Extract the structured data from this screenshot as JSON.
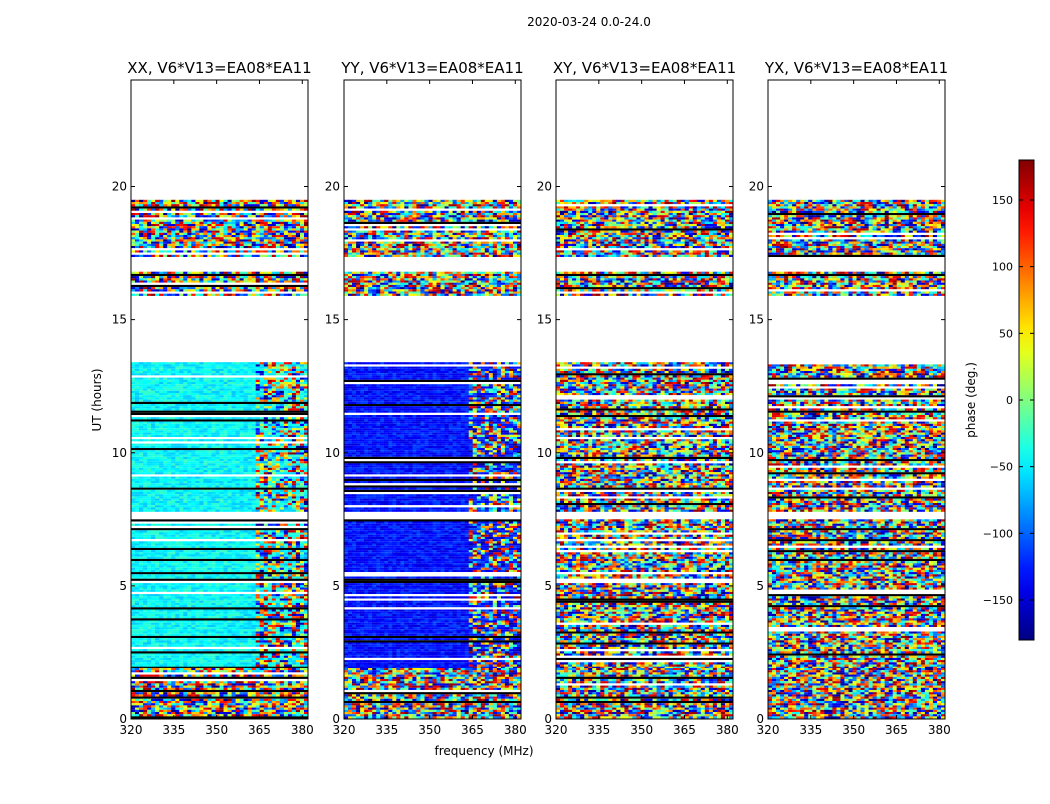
{
  "chart_data": {
    "type": "heatmap",
    "suptitle": "2020-03-24 0.0-24.0",
    "xlabel": "frequency (MHz)",
    "ylabel": "UT (hours)",
    "xlim": [
      320,
      382
    ],
    "ylim": [
      0,
      24
    ],
    "xticks": [
      320,
      335,
      350,
      365,
      380
    ],
    "yticks": [
      0,
      5,
      10,
      15,
      20
    ],
    "panels": [
      {
        "title": "XX, V6*V13=EA08*EA11",
        "pol": "XX",
        "base_phase": -45
      },
      {
        "title": "YY, V6*V13=EA08*EA11",
        "pol": "YY",
        "base_phase": -130
      },
      {
        "title": "XY, V6*V13=EA08*EA11",
        "pol": "XY",
        "base_phase": null
      },
      {
        "title": "YX, V6*V13=EA08*EA11",
        "pol": "YX",
        "base_phase": null
      }
    ],
    "data_time_ranges": [
      [
        0,
        2.0
      ],
      [
        2.0,
        7.5
      ],
      [
        7.8,
        13.4
      ],
      [
        15.9,
        16.8
      ],
      [
        17.4,
        19.5
      ]
    ],
    "colorbar": {
      "label": "phase (deg.)",
      "colormap": "jet",
      "range": [
        -180,
        180
      ],
      "ticks": [
        150,
        100,
        50,
        0,
        -50,
        -100,
        -150
      ],
      "tick_labels": [
        "150",
        "100",
        "50",
        "0",
        "−50",
        "−100",
        "−150"
      ]
    }
  }
}
